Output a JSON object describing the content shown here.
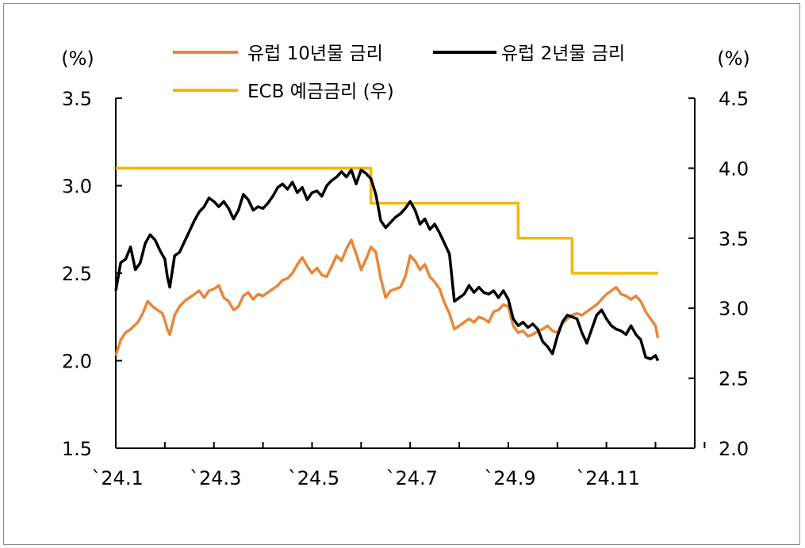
{
  "chart_data": {
    "type": "line",
    "title": "",
    "left_axis": {
      "unit_label": "(%)",
      "range": [
        1.5,
        3.5
      ],
      "ticks": [
        "3.5",
        "3.0",
        "2.5",
        "2.0",
        "1.5"
      ]
    },
    "right_axis": {
      "unit_label": "(%)",
      "range": [
        2.0,
        4.5
      ],
      "ticks": [
        "4.5",
        "4.0",
        "3.5",
        "3.0",
        "2.5",
        "2.0"
      ]
    },
    "x_axis": {
      "ticks": [
        "`24.1",
        "`24.3",
        "`24.5",
        "`24.7",
        "`24.9",
        "`24.11"
      ],
      "range_months": [
        1,
        12.8
      ]
    },
    "grid": false,
    "legend_position": "top",
    "series": [
      {
        "name": "유럽 10년물 금리",
        "axis": "left",
        "color": "#E8873A",
        "points": [
          [
            1.0,
            2.03
          ],
          [
            1.1,
            2.12
          ],
          [
            1.2,
            2.16
          ],
          [
            1.3,
            2.18
          ],
          [
            1.45,
            2.22
          ],
          [
            1.55,
            2.27
          ],
          [
            1.65,
            2.34
          ],
          [
            1.75,
            2.31
          ],
          [
            1.85,
            2.29
          ],
          [
            1.95,
            2.27
          ],
          [
            2.0,
            2.23
          ],
          [
            2.05,
            2.18
          ],
          [
            2.1,
            2.15
          ],
          [
            2.2,
            2.26
          ],
          [
            2.3,
            2.31
          ],
          [
            2.4,
            2.34
          ],
          [
            2.5,
            2.36
          ],
          [
            2.6,
            2.38
          ],
          [
            2.7,
            2.4
          ],
          [
            2.8,
            2.36
          ],
          [
            2.9,
            2.4
          ],
          [
            3.0,
            2.41
          ],
          [
            3.1,
            2.43
          ],
          [
            3.2,
            2.36
          ],
          [
            3.3,
            2.34
          ],
          [
            3.4,
            2.29
          ],
          [
            3.5,
            2.31
          ],
          [
            3.6,
            2.37
          ],
          [
            3.7,
            2.39
          ],
          [
            3.8,
            2.35
          ],
          [
            3.9,
            2.38
          ],
          [
            4.0,
            2.37
          ],
          [
            4.1,
            2.39
          ],
          [
            4.2,
            2.41
          ],
          [
            4.3,
            2.43
          ],
          [
            4.4,
            2.46
          ],
          [
            4.5,
            2.47
          ],
          [
            4.6,
            2.5
          ],
          [
            4.7,
            2.55
          ],
          [
            4.8,
            2.59
          ],
          [
            4.9,
            2.54
          ],
          [
            5.0,
            2.5
          ],
          [
            5.1,
            2.53
          ],
          [
            5.2,
            2.49
          ],
          [
            5.3,
            2.48
          ],
          [
            5.4,
            2.54
          ],
          [
            5.5,
            2.6
          ],
          [
            5.6,
            2.57
          ],
          [
            5.7,
            2.64
          ],
          [
            5.8,
            2.69
          ],
          [
            5.9,
            2.61
          ],
          [
            6.0,
            2.52
          ],
          [
            6.1,
            2.58
          ],
          [
            6.2,
            2.65
          ],
          [
            6.3,
            2.62
          ],
          [
            6.4,
            2.47
          ],
          [
            6.5,
            2.36
          ],
          [
            6.6,
            2.4
          ],
          [
            6.7,
            2.41
          ],
          [
            6.8,
            2.42
          ],
          [
            6.9,
            2.48
          ],
          [
            7.0,
            2.6
          ],
          [
            7.1,
            2.57
          ],
          [
            7.2,
            2.52
          ],
          [
            7.3,
            2.55
          ],
          [
            7.4,
            2.48
          ],
          [
            7.5,
            2.45
          ],
          [
            7.6,
            2.41
          ],
          [
            7.7,
            2.33
          ],
          [
            7.8,
            2.27
          ],
          [
            7.9,
            2.18
          ],
          [
            8.0,
            2.2
          ],
          [
            8.1,
            2.22
          ],
          [
            8.2,
            2.24
          ],
          [
            8.3,
            2.22
          ],
          [
            8.4,
            2.25
          ],
          [
            8.5,
            2.24
          ],
          [
            8.6,
            2.22
          ],
          [
            8.7,
            2.28
          ],
          [
            8.8,
            2.29
          ],
          [
            8.9,
            2.32
          ],
          [
            9.0,
            2.31
          ],
          [
            9.1,
            2.2
          ],
          [
            9.2,
            2.16
          ],
          [
            9.3,
            2.17
          ],
          [
            9.4,
            2.14
          ],
          [
            9.5,
            2.15
          ],
          [
            9.6,
            2.17
          ],
          [
            9.7,
            2.18
          ],
          [
            9.8,
            2.2
          ],
          [
            9.9,
            2.17
          ],
          [
            10.0,
            2.16
          ],
          [
            10.1,
            2.21
          ],
          [
            10.2,
            2.24
          ],
          [
            10.3,
            2.26
          ],
          [
            10.4,
            2.27
          ],
          [
            10.5,
            2.26
          ],
          [
            10.6,
            2.28
          ],
          [
            10.7,
            2.3
          ],
          [
            10.8,
            2.32
          ],
          [
            10.9,
            2.35
          ],
          [
            11.0,
            2.38
          ],
          [
            11.1,
            2.4
          ],
          [
            11.2,
            2.42
          ],
          [
            11.3,
            2.38
          ],
          [
            11.4,
            2.37
          ],
          [
            11.5,
            2.35
          ],
          [
            11.6,
            2.37
          ],
          [
            11.7,
            2.34
          ],
          [
            11.8,
            2.28
          ],
          [
            11.9,
            2.24
          ],
          [
            12.0,
            2.2
          ],
          [
            12.05,
            2.13
          ]
        ]
      },
      {
        "name": "유럽 2년물 금리",
        "axis": "left",
        "color": "#000000",
        "points": [
          [
            1.0,
            2.4
          ],
          [
            1.1,
            2.56
          ],
          [
            1.2,
            2.58
          ],
          [
            1.3,
            2.65
          ],
          [
            1.4,
            2.52
          ],
          [
            1.5,
            2.56
          ],
          [
            1.6,
            2.67
          ],
          [
            1.7,
            2.72
          ],
          [
            1.8,
            2.69
          ],
          [
            1.9,
            2.63
          ],
          [
            2.0,
            2.58
          ],
          [
            2.05,
            2.48
          ],
          [
            2.1,
            2.42
          ],
          [
            2.2,
            2.6
          ],
          [
            2.3,
            2.62
          ],
          [
            2.4,
            2.68
          ],
          [
            2.5,
            2.74
          ],
          [
            2.6,
            2.8
          ],
          [
            2.7,
            2.85
          ],
          [
            2.8,
            2.88
          ],
          [
            2.9,
            2.93
          ],
          [
            3.0,
            2.91
          ],
          [
            3.1,
            2.88
          ],
          [
            3.2,
            2.91
          ],
          [
            3.3,
            2.87
          ],
          [
            3.4,
            2.81
          ],
          [
            3.5,
            2.86
          ],
          [
            3.6,
            2.95
          ],
          [
            3.7,
            2.92
          ],
          [
            3.8,
            2.86
          ],
          [
            3.9,
            2.88
          ],
          [
            4.0,
            2.87
          ],
          [
            4.1,
            2.9
          ],
          [
            4.2,
            2.94
          ],
          [
            4.3,
            2.99
          ],
          [
            4.4,
            3.01
          ],
          [
            4.5,
            2.98
          ],
          [
            4.6,
            3.02
          ],
          [
            4.7,
            2.96
          ],
          [
            4.8,
            2.99
          ],
          [
            4.9,
            2.92
          ],
          [
            5.0,
            2.96
          ],
          [
            5.1,
            2.97
          ],
          [
            5.2,
            2.94
          ],
          [
            5.3,
            3.0
          ],
          [
            5.4,
            3.03
          ],
          [
            5.5,
            3.05
          ],
          [
            5.6,
            3.08
          ],
          [
            5.7,
            3.05
          ],
          [
            5.8,
            3.09
          ],
          [
            5.9,
            3.01
          ],
          [
            6.0,
            3.09
          ],
          [
            6.1,
            3.07
          ],
          [
            6.2,
            3.04
          ],
          [
            6.3,
            2.95
          ],
          [
            6.4,
            2.8
          ],
          [
            6.5,
            2.76
          ],
          [
            6.6,
            2.79
          ],
          [
            6.7,
            2.82
          ],
          [
            6.8,
            2.84
          ],
          [
            6.9,
            2.87
          ],
          [
            7.0,
            2.91
          ],
          [
            7.1,
            2.86
          ],
          [
            7.2,
            2.78
          ],
          [
            7.3,
            2.81
          ],
          [
            7.4,
            2.75
          ],
          [
            7.5,
            2.78
          ],
          [
            7.6,
            2.73
          ],
          [
            7.7,
            2.67
          ],
          [
            7.8,
            2.61
          ],
          [
            7.9,
            2.34
          ],
          [
            8.0,
            2.36
          ],
          [
            8.1,
            2.38
          ],
          [
            8.2,
            2.43
          ],
          [
            8.3,
            2.39
          ],
          [
            8.4,
            2.42
          ],
          [
            8.5,
            2.39
          ],
          [
            8.6,
            2.38
          ],
          [
            8.7,
            2.4
          ],
          [
            8.8,
            2.36
          ],
          [
            8.9,
            2.4
          ],
          [
            9.0,
            2.35
          ],
          [
            9.1,
            2.24
          ],
          [
            9.2,
            2.2
          ],
          [
            9.3,
            2.22
          ],
          [
            9.4,
            2.19
          ],
          [
            9.5,
            2.21
          ],
          [
            9.6,
            2.18
          ],
          [
            9.7,
            2.11
          ],
          [
            9.8,
            2.08
          ],
          [
            9.9,
            2.04
          ],
          [
            10.0,
            2.14
          ],
          [
            10.1,
            2.22
          ],
          [
            10.2,
            2.26
          ],
          [
            10.3,
            2.25
          ],
          [
            10.4,
            2.24
          ],
          [
            10.5,
            2.16
          ],
          [
            10.6,
            2.1
          ],
          [
            10.7,
            2.18
          ],
          [
            10.8,
            2.26
          ],
          [
            10.9,
            2.29
          ],
          [
            11.0,
            2.24
          ],
          [
            11.1,
            2.2
          ],
          [
            11.2,
            2.18
          ],
          [
            11.3,
            2.17
          ],
          [
            11.4,
            2.15
          ],
          [
            11.5,
            2.2
          ],
          [
            11.6,
            2.15
          ],
          [
            11.7,
            2.12
          ],
          [
            11.8,
            2.02
          ],
          [
            11.9,
            2.01
          ],
          [
            12.0,
            2.03
          ],
          [
            12.05,
            2.0
          ]
        ]
      },
      {
        "name": "ECB 예금금리 (우)",
        "axis": "right",
        "color": "#F5B800",
        "points": [
          [
            1.0,
            4.0
          ],
          [
            6.2,
            4.0
          ],
          [
            6.2,
            3.75
          ],
          [
            9.2,
            3.75
          ],
          [
            9.2,
            3.5
          ],
          [
            10.3,
            3.5
          ],
          [
            10.3,
            3.25
          ],
          [
            12.05,
            3.25
          ]
        ]
      }
    ]
  }
}
